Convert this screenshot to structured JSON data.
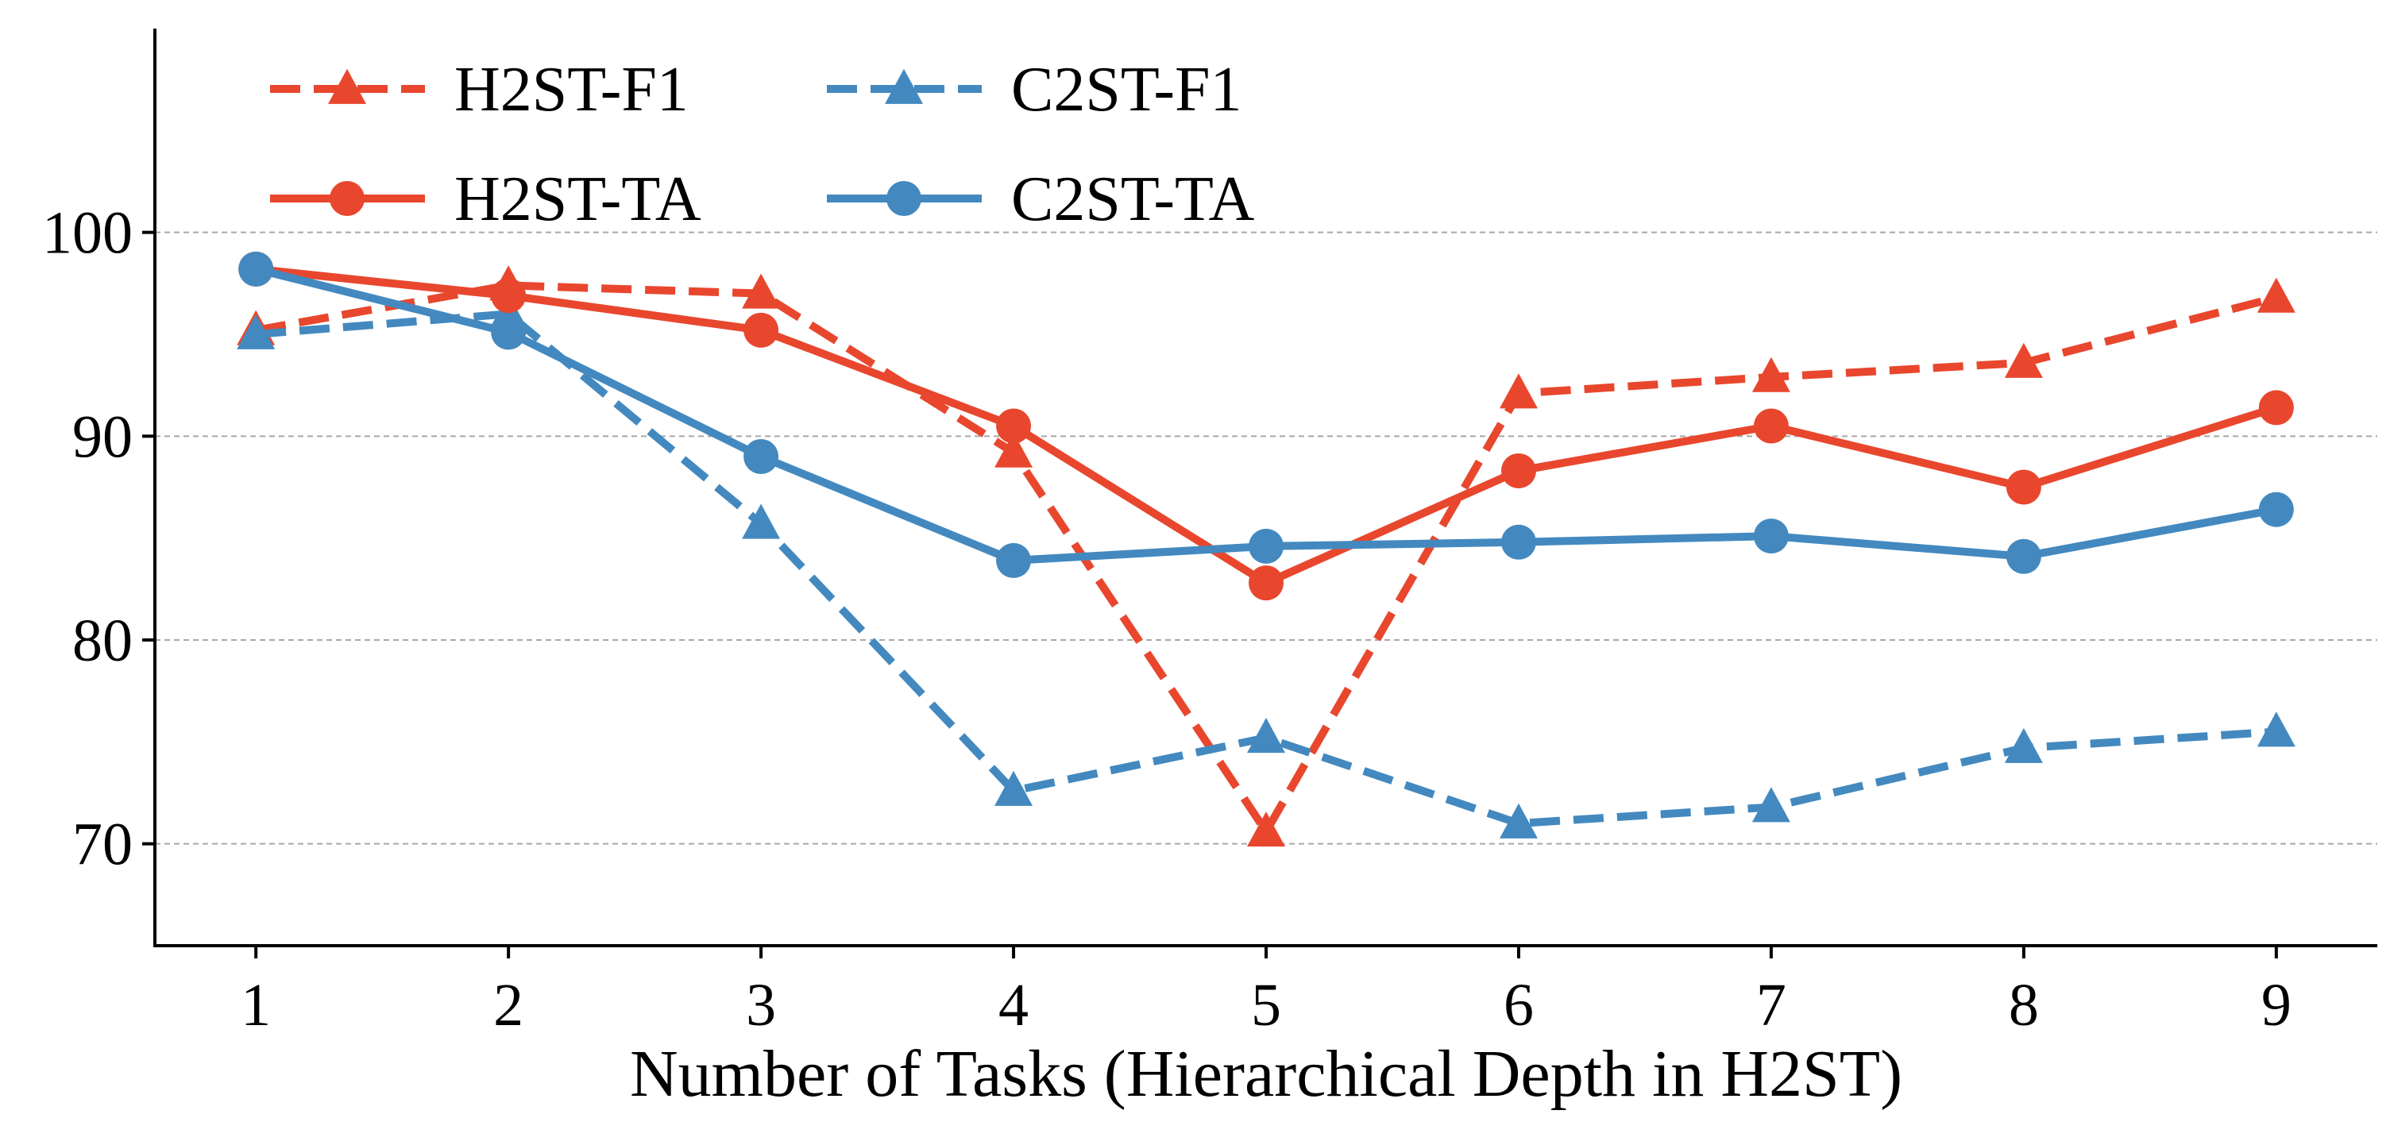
{
  "chart_data": {
    "type": "line",
    "title": "",
    "xlabel": "Number of Tasks (Hierarchical Depth in H2ST)",
    "ylabel": "",
    "x": [
      1,
      2,
      3,
      4,
      5,
      6,
      7,
      8,
      9
    ],
    "xticks": [
      "1",
      "2",
      "3",
      "4",
      "5",
      "6",
      "7",
      "8",
      "9"
    ],
    "yticks": [
      70,
      80,
      90,
      100
    ],
    "ytick_labels": [
      "70",
      "80",
      "90",
      "100"
    ],
    "xlim": [
      0.6,
      9.4
    ],
    "ylim": [
      65,
      110
    ],
    "grid": "horizontal dashed",
    "legend_position": "top-left",
    "series": [
      {
        "name": "H2ST-F1",
        "color": "#E8472E",
        "linestyle": "dashed",
        "marker": "triangle",
        "values": [
          95.2,
          97.4,
          97.0,
          89.2,
          70.6,
          92.1,
          92.9,
          93.6,
          96.8
        ]
      },
      {
        "name": "C2ST-F1",
        "color": "#4389BF",
        "linestyle": "dashed",
        "marker": "triangle",
        "values": [
          95.0,
          96.0,
          85.7,
          72.6,
          75.2,
          71.0,
          71.8,
          74.7,
          75.5
        ]
      },
      {
        "name": "H2ST-TA",
        "color": "#E8472E",
        "linestyle": "solid",
        "marker": "circle",
        "values": [
          98.2,
          96.9,
          95.2,
          90.5,
          82.8,
          88.3,
          90.5,
          87.5,
          91.4
        ]
      },
      {
        "name": "C2ST-TA",
        "color": "#4389BF",
        "linestyle": "solid",
        "marker": "circle",
        "values": [
          98.2,
          95.1,
          89.0,
          83.9,
          84.6,
          84.8,
          85.1,
          84.1,
          86.4
        ]
      }
    ]
  }
}
